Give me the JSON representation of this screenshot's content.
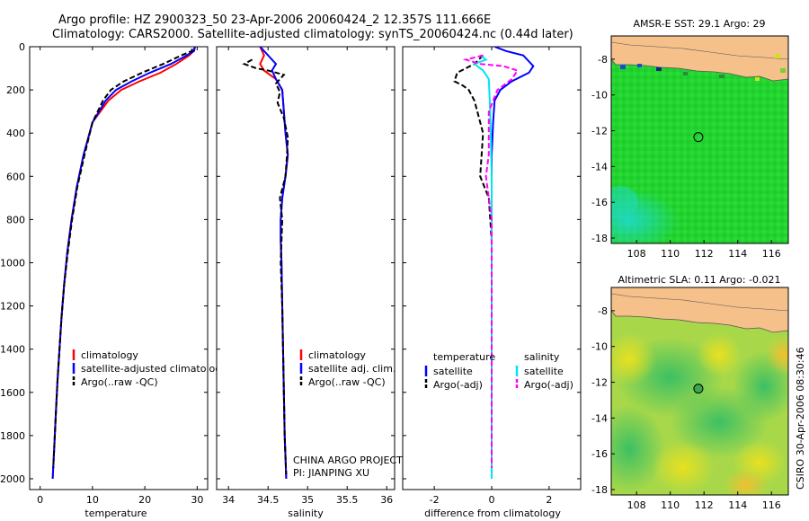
{
  "title_line1": "Argo profile: HZ 2900323_50 23-Apr-2006 20060424_2 12.357S 111.666E",
  "title_line2": "Climatology: CARS2000. Satellite-adjusted climatology: synTS_20060424.nc (0.44d later)",
  "project_line1": "CHINA ARGO PROJECT",
  "project_line2": "PI: JIANPING XU",
  "side_stamp": "CSIRO 30-Apr-2006 08:30:46",
  "colors": {
    "climatology": "#ff0000",
    "satellite": "#0000ff",
    "argo": "#000000",
    "sal_satellite": "#00e5ee",
    "sal_argo": "#ff00ff",
    "land": "#f5c08a"
  },
  "chart_data": [
    {
      "type": "line",
      "xlabel": "temperature",
      "xlim": [
        -2,
        32
      ],
      "ylim": [
        2050,
        0
      ],
      "xticks": [
        "0",
        "10",
        "20",
        "30"
      ],
      "yticks": [
        "0",
        "200",
        "400",
        "600",
        "800",
        "1000",
        "1200",
        "1400",
        "1600",
        "1800",
        "2000"
      ],
      "legend": [
        "climatology",
        "satellite-adjusted climatology",
        "Argo(..raw -QC)"
      ],
      "series": [
        {
          "name": "climatology",
          "style": "solid",
          "color": "#ff0000",
          "x": [
            29.5,
            29.3,
            28.5,
            26,
            23,
            19,
            15.5,
            13,
            10,
            8.3,
            7,
            6,
            5.2,
            4.6,
            4.1,
            3.7,
            3.3,
            3.0,
            2.7,
            2.5,
            2.4
          ],
          "y": [
            0,
            20,
            40,
            80,
            120,
            160,
            200,
            250,
            350,
            500,
            650,
            800,
            950,
            1100,
            1250,
            1400,
            1550,
            1700,
            1850,
            1950,
            2000
          ]
        },
        {
          "name": "satellite-adjusted climatology",
          "style": "solid",
          "color": "#0000ff",
          "x": [
            29.6,
            29.4,
            28,
            25,
            21,
            17.5,
            14.5,
            12.5,
            10,
            8.3,
            7,
            6,
            5.2,
            4.6,
            4.1,
            3.7,
            3.3,
            3.0,
            2.7,
            2.5,
            2.4
          ],
          "y": [
            0,
            20,
            40,
            80,
            120,
            160,
            200,
            250,
            350,
            500,
            650,
            800,
            950,
            1100,
            1250,
            1400,
            1550,
            1700,
            1850,
            1950,
            2000
          ]
        },
        {
          "name": "Argo(..raw -QC)",
          "style": "dashed",
          "color": "#000000",
          "x": [
            29,
            29,
            27,
            23.5,
            19.5,
            16,
            13.5,
            12,
            10,
            8.5,
            7.1,
            6.1,
            5.3,
            4.6,
            4.1,
            3.7,
            3.3,
            3.0,
            2.7,
            2.5
          ],
          "y": [
            10,
            20,
            40,
            80,
            120,
            160,
            200,
            250,
            350,
            500,
            650,
            800,
            950,
            1100,
            1250,
            1400,
            1550,
            1700,
            1850,
            1950
          ]
        }
      ]
    },
    {
      "type": "line",
      "xlabel": "salinity",
      "xlim": [
        33.85,
        36.1
      ],
      "ylim": [
        2050,
        0
      ],
      "xticks": [
        "34",
        "34.5",
        "35",
        "35.5",
        "36"
      ],
      "legend": [
        "climatology",
        "satellite adj. clim.",
        "Argo(..raw -QC)"
      ],
      "series": [
        {
          "name": "climatology",
          "style": "solid",
          "color": "#ff0000",
          "x": [
            34.4,
            34.45,
            34.4,
            34.45,
            34.6,
            34.68,
            34.7,
            34.72,
            34.75,
            34.72,
            34.68,
            34.66,
            34.66,
            34.67,
            34.68,
            34.69,
            34.7,
            34.71,
            34.72,
            34.73
          ],
          "y": [
            0,
            40,
            80,
            110,
            150,
            200,
            300,
            400,
            500,
            600,
            700,
            800,
            900,
            1000,
            1200,
            1400,
            1600,
            1800,
            1900,
            2000
          ]
        },
        {
          "name": "satellite adj. clim.",
          "style": "solid",
          "color": "#0000ff",
          "x": [
            34.4,
            34.5,
            34.6,
            34.55,
            34.6,
            34.68,
            34.7,
            34.72,
            34.75,
            34.72,
            34.68,
            34.66,
            34.66,
            34.67,
            34.68,
            34.69,
            34.7,
            34.71,
            34.72,
            34.73
          ],
          "y": [
            0,
            40,
            80,
            110,
            150,
            200,
            300,
            400,
            500,
            600,
            700,
            800,
            900,
            1000,
            1200,
            1400,
            1600,
            1800,
            1900,
            2000
          ]
        },
        {
          "name": "Argo(..raw -QC)",
          "style": "dashed",
          "color": "#000000",
          "x": [
            34.3,
            34.2,
            34.35,
            34.5,
            34.7,
            34.6,
            34.65,
            34.62,
            34.7,
            34.75,
            34.74,
            34.72,
            34.65,
            34.68,
            34.66,
            34.68,
            34.69,
            34.7,
            34.71,
            34.72,
            34.73
          ],
          "y": [
            60,
            80,
            100,
            110,
            130,
            170,
            210,
            260,
            330,
            420,
            500,
            600,
            700,
            800,
            1000,
            1200,
            1400,
            1600,
            1800,
            1900,
            1980
          ]
        }
      ]
    },
    {
      "type": "line",
      "xlabel": "difference from climatology",
      "xlim": [
        -3.1,
        3.1
      ],
      "ylim": [
        2050,
        0
      ],
      "xticks": [
        "-2",
        "0",
        "2"
      ],
      "legend": [
        "temperature",
        "satellite",
        "Argo(-adj)",
        "salinity",
        "satellite",
        "Argo(-adj)"
      ],
      "series": [
        {
          "name": "satellite",
          "group": "temperature",
          "style": "solid",
          "color": "#0000ff",
          "x": [
            0.1,
            0.5,
            1.1,
            1.45,
            1.3,
            0.7,
            0.3,
            0.1,
            0.05,
            0.0,
            0.0,
            0.0,
            0.0
          ],
          "y": [
            0,
            20,
            40,
            90,
            120,
            160,
            200,
            250,
            350,
            500,
            800,
            1200,
            2000
          ]
        },
        {
          "name": "Argo(-adj)",
          "group": "temperature",
          "style": "dashed",
          "color": "#000000",
          "x": [
            -0.3,
            -0.6,
            -1.2,
            -1.3,
            -1.0,
            -0.8,
            -0.6,
            -0.5,
            -0.3,
            -0.4,
            -0.1,
            -0.05,
            0.0,
            0.0,
            0.0,
            0.0
          ],
          "y": [
            40,
            80,
            120,
            160,
            180,
            200,
            250,
            300,
            400,
            600,
            700,
            800,
            900,
            1200,
            1600,
            1950
          ]
        },
        {
          "name": "satellite",
          "group": "salinity",
          "style": "solid",
          "color": "#00e5ee",
          "x": [
            -0.4,
            -0.2,
            -0.6,
            -0.3,
            -0.1,
            -0.05,
            0.0,
            0.0,
            0.0,
            0.0
          ],
          "y": [
            40,
            60,
            80,
            110,
            150,
            300,
            600,
            1000,
            1500,
            2000
          ]
        },
        {
          "name": "Argo(-adj)",
          "group": "salinity",
          "style": "dashed",
          "color": "#ff00ff",
          "x": [
            -0.3,
            -0.9,
            -0.4,
            0.4,
            0.9,
            0.7,
            0.2,
            -0.1,
            -0.1,
            -0.2,
            -0.1,
            0.0,
            0.0,
            0.0
          ],
          "y": [
            40,
            60,
            80,
            90,
            110,
            150,
            200,
            300,
            500,
            600,
            700,
            800,
            1200,
            1950
          ]
        }
      ]
    },
    {
      "type": "heatmap",
      "title": "AMSR-E SST: 29.1 Argo: 29",
      "xlim": [
        106.5,
        117
      ],
      "ylim": [
        -18.3,
        -6.7
      ],
      "xticks": [
        "108",
        "110",
        "112",
        "114",
        "116"
      ],
      "yticks": [
        "-8",
        "-10",
        "-12",
        "-14",
        "-16",
        "-18"
      ],
      "marker": {
        "lon": 111.666,
        "lat": -12.357
      }
    },
    {
      "type": "heatmap",
      "title": "Altimetric SLA: 0.11 Argo: -0.021",
      "xlim": [
        106.5,
        117
      ],
      "ylim": [
        -18.3,
        -6.7
      ],
      "xticks": [
        "108",
        "110",
        "112",
        "114",
        "116"
      ],
      "yticks": [
        "-8",
        "-10",
        "-12",
        "-14",
        "-16",
        "-18"
      ],
      "marker": {
        "lon": 111.666,
        "lat": -12.357
      }
    }
  ]
}
